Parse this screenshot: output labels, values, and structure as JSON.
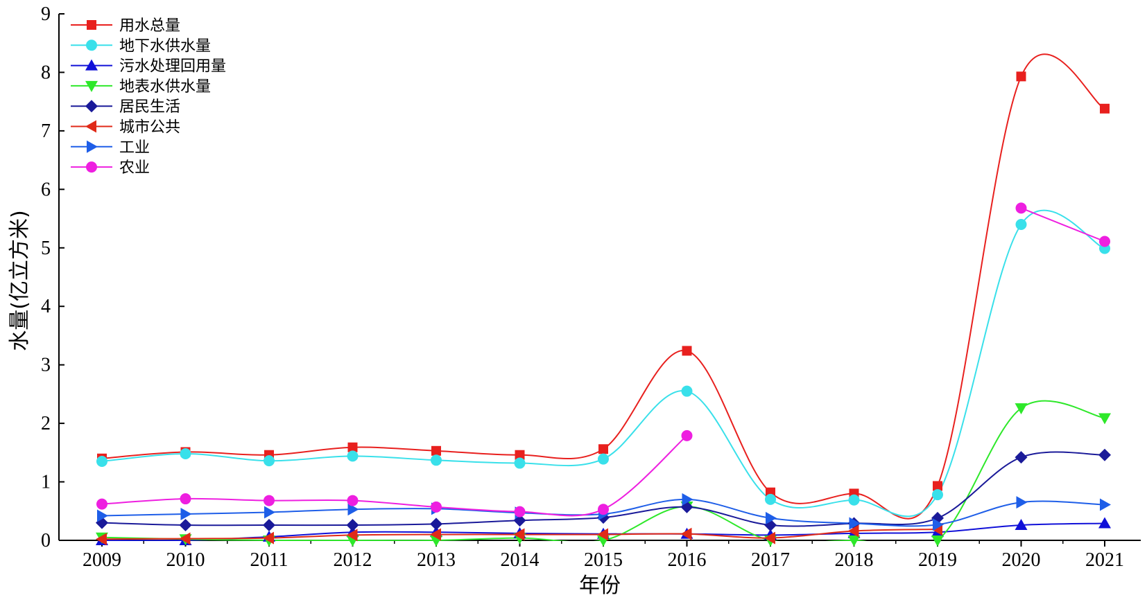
{
  "chart_data": {
    "type": "line",
    "xlabel": "年份",
    "ylabel": "水量(亿立方米)",
    "ylim": [
      0,
      9
    ],
    "yticks": [
      "0",
      "1",
      "2",
      "3",
      "4",
      "5",
      "6",
      "7",
      "8",
      "9"
    ],
    "categories": [
      "2009",
      "2010",
      "2011",
      "2012",
      "2013",
      "2014",
      "2015",
      "2016",
      "2017",
      "2018",
      "2019",
      "2020",
      "2021"
    ],
    "legend_position": "top-left",
    "series": [
      {
        "name": "用水总量",
        "color": "#e8201e",
        "marker": "square",
        "values": [
          1.4,
          1.51,
          1.46,
          1.59,
          1.53,
          1.46,
          1.56,
          3.24,
          0.82,
          0.8,
          0.93,
          7.93,
          7.38
        ]
      },
      {
        "name": "地下水供水量",
        "color": "#39e0ea",
        "marker": "circle",
        "values": [
          1.35,
          1.48,
          1.36,
          1.44,
          1.37,
          1.32,
          1.39,
          2.55,
          0.7,
          0.69,
          0.78,
          5.4,
          4.99
        ]
      },
      {
        "name": "污水处理回用量",
        "color": "#1010d8",
        "marker": "triangle-up",
        "values": [
          0.0,
          0.0,
          0.06,
          0.14,
          0.14,
          0.12,
          0.11,
          0.11,
          0.09,
          0.12,
          0.14,
          0.26,
          0.29
        ]
      },
      {
        "name": "地表水供水量",
        "color": "#2ee82a",
        "marker": "triangle-down",
        "values": [
          0.05,
          0.02,
          0.0,
          0.0,
          0.0,
          0.04,
          0.0,
          0.58,
          0.0,
          0.0,
          0.0,
          2.26,
          2.09
        ]
      },
      {
        "name": "居民生活",
        "color": "#1a1a99",
        "marker": "diamond",
        "values": [
          0.3,
          0.26,
          0.26,
          0.26,
          0.28,
          0.34,
          0.39,
          0.57,
          0.26,
          0.29,
          0.38,
          1.42,
          1.46
        ]
      },
      {
        "name": "城市公共",
        "color": "#e02a18",
        "marker": "triangle-left",
        "values": [
          0.02,
          0.03,
          0.04,
          0.09,
          0.1,
          0.1,
          0.1,
          0.11,
          0.04,
          0.16,
          0.19,
          null,
          null
        ]
      },
      {
        "name": "工业",
        "color": "#1e5ee8",
        "marker": "triangle-right",
        "values": [
          0.42,
          0.45,
          0.48,
          0.53,
          0.54,
          0.47,
          0.45,
          0.7,
          0.38,
          0.29,
          0.27,
          0.65,
          0.61
        ]
      },
      {
        "name": "农业",
        "color": "#ee1fe0",
        "marker": "circle",
        "values": [
          0.62,
          0.71,
          0.68,
          0.68,
          0.57,
          0.49,
          0.53,
          1.79,
          null,
          null,
          null,
          5.68,
          5.11
        ]
      }
    ]
  }
}
